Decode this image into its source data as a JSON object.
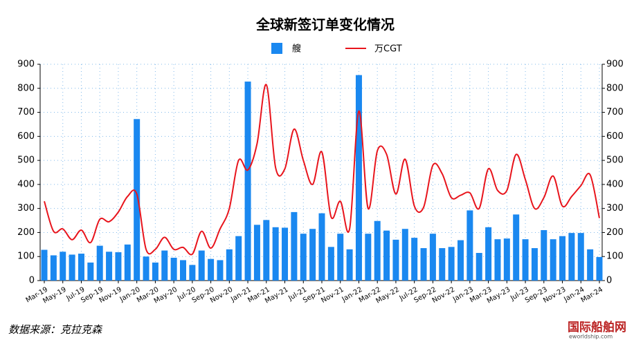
{
  "chart_data": {
    "type": "bar-line",
    "title": "全球新签订单变化情况",
    "categories": [
      "Mar-19",
      null,
      "May-19",
      null,
      "Jul-19",
      null,
      "Sep-19",
      null,
      "Nov-19",
      null,
      "Jan-20",
      null,
      "Mar-20",
      null,
      "May-20",
      null,
      "Jul-20",
      null,
      "Sep-20",
      null,
      "Nov-20",
      null,
      "Jan-21",
      null,
      "Mar-21",
      null,
      "May-21",
      null,
      "Jul-21",
      null,
      "Sep-21",
      null,
      "Nov-21",
      null,
      "Jan-22",
      null,
      "Mar-22",
      null,
      "May-22",
      null,
      "Jul-22",
      null,
      "Sep-22",
      null,
      "Nov-22",
      null,
      "Jan-23",
      null,
      "Mar-23",
      null,
      "May-23",
      null,
      "Jul-23",
      null,
      "Sep-23",
      null,
      "Nov-23",
      null,
      "Jan-24",
      null,
      "Mar-24"
    ],
    "series": [
      {
        "name": "艘",
        "type": "bar",
        "color": "#1a88f0",
        "values": [
          128,
          105,
          120,
          108,
          112,
          75,
          145,
          120,
          118,
          150,
          672,
          100,
          75,
          125,
          95,
          85,
          65,
          125,
          90,
          85,
          130,
          185,
          828,
          232,
          252,
          222,
          220,
          285,
          195,
          215,
          280,
          140,
          195,
          130,
          855,
          195,
          248,
          208,
          170,
          215,
          178,
          135,
          195,
          135,
          140,
          168,
          292,
          115,
          222,
          172,
          175,
          275,
          172,
          135,
          210,
          172,
          185,
          198,
          198,
          130,
          98
        ]
      },
      {
        "name": "万CGT",
        "type": "line",
        "axis": "y2",
        "color": "#e8141c",
        "values": [
          330,
          205,
          215,
          170,
          210,
          158,
          255,
          245,
          285,
          350,
          360,
          130,
          130,
          180,
          130,
          138,
          110,
          205,
          135,
          215,
          300,
          500,
          460,
          570,
          815,
          470,
          465,
          630,
          500,
          400,
          535,
          265,
          330,
          215,
          705,
          300,
          540,
          525,
          360,
          505,
          310,
          305,
          480,
          445,
          345,
          355,
          365,
          300,
          465,
          375,
          375,
          525,
          420,
          300,
          345,
          435,
          310,
          350,
          395,
          440,
          260
        ]
      }
    ],
    "ylim": [
      0,
      900
    ],
    "yticks": [
      0,
      100,
      200,
      300,
      400,
      500,
      600,
      700,
      800,
      900
    ],
    "y2lim": [
      0,
      900
    ],
    "y2ticks": [
      0,
      100,
      200,
      300,
      400,
      500,
      600,
      700,
      800,
      900
    ],
    "grid": true,
    "legend": "top"
  },
  "source": "数据来源：克拉克森",
  "watermark": "国际船舶网",
  "watermark_url": "eworldship.com"
}
